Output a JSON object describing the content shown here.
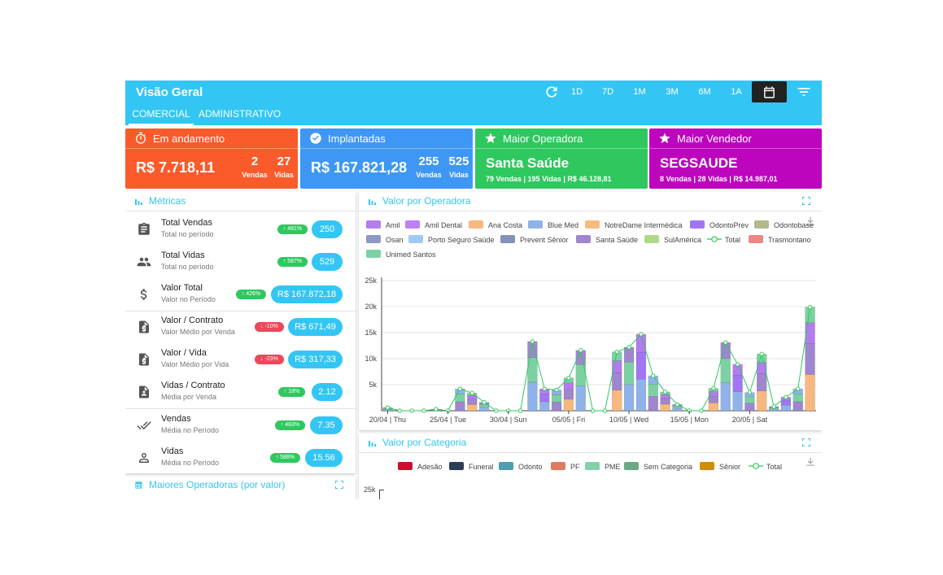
{
  "header": {
    "title": "Visão Geral",
    "tabs": [
      {
        "label": "COMERCIAL",
        "active": true
      },
      {
        "label": "ADMINISTRATIVO",
        "active": false
      }
    ],
    "ranges": [
      "1D",
      "7D",
      "1M",
      "3M",
      "6M",
      "1A"
    ],
    "icons": [
      "refresh-icon",
      "calendar-icon",
      "filter-icon"
    ]
  },
  "kpis": {
    "andamento": {
      "label": "Em andamento",
      "value": "R$ 7.718,11",
      "n1": "2",
      "n1_label": "Vendas",
      "n2": "27",
      "n2_label": "Vidas",
      "color": "#fb5a2b"
    },
    "implantadas": {
      "label": "Implantadas",
      "value": "R$ 167.821,28",
      "n1": "255",
      "n1_label": "Vendas",
      "n2": "525",
      "n2_label": "Vidas",
      "color": "#3e97f4"
    },
    "operadora": {
      "label": "Maior Operadora",
      "name": "Santa Saúde",
      "detail": "79 Vendas | 195 Vidas | R$ 46.128,81",
      "color": "#2fc85f"
    },
    "vendedor": {
      "label": "Maior Vendedor",
      "name": "SEGSAUDE",
      "detail": "8 Vendas | 28 Vidas | R$ 14.987,01",
      "color": "#bd05bd"
    }
  },
  "metrics": {
    "title": "Métricas",
    "rows": [
      {
        "label": "Total Vendas",
        "sub": "Total no período",
        "pct": "↑ 481%",
        "pct_color": "#2fc85f",
        "value": "250",
        "icon": "clipboard-icon"
      },
      {
        "label": "Total Vidas",
        "sub": "Total no período",
        "pct": "↑ 587%",
        "pct_color": "#2fc85f",
        "value": "529",
        "icon": "people-icon"
      },
      {
        "label": "Valor Total",
        "sub": "Valor no Período",
        "pct": "↑ 426%",
        "pct_color": "#2fc85f",
        "value": "R$ 167.872,18",
        "icon": "dollar-icon"
      },
      {
        "label": "Valor / Contrato",
        "sub": "Valor Médio por Venda",
        "pct": "↓ -10%",
        "pct_color": "#f0465a",
        "value": "R$ 671,49",
        "icon": "money-file-icon"
      },
      {
        "label": "Valor / Vida",
        "sub": "Valor Médio por Vida",
        "pct": "↓ -23%",
        "pct_color": "#f0465a",
        "value": "R$ 317,33",
        "icon": "money-file-icon"
      },
      {
        "label": "Vidas / Contrato",
        "sub": "Média por Venda",
        "pct": "↑ 18%",
        "pct_color": "#2fc85f",
        "value": "2.12",
        "icon": "person-file-icon"
      },
      {
        "label": "Vendas",
        "sub": "Média no Período",
        "pct": "↑ 483%",
        "pct_color": "#2fc85f",
        "value": "7.35",
        "icon": "double-check-icon"
      },
      {
        "label": "Vidas",
        "sub": "Média no Período",
        "pct": "↑ 588%",
        "pct_color": "#2fc85f",
        "value": "15.56",
        "icon": "person-icon"
      }
    ]
  },
  "maiores": {
    "title": "Maiores Operadoras (por valor)"
  },
  "chart_data": [
    {
      "type": "bar",
      "title": "Valor por Operadora",
      "stacked": true,
      "ylim": [
        0,
        25000
      ],
      "yticks": [
        "5k",
        "10k",
        "15k",
        "20k",
        "25k"
      ],
      "xtick_labels": [
        "20/04 | Thu",
        "25/04 | Tue",
        "30/04 | Sun",
        "05/05 | Fri",
        "10/05 | Wed",
        "15/05 | Mon",
        "20/05 | Sat"
      ],
      "legend": [
        {
          "name": "Amil",
          "color": "#b57cf0"
        },
        {
          "name": "Amil Dental",
          "color": "#c07ef5"
        },
        {
          "name": "Ana Costa",
          "color": "#f7b87f"
        },
        {
          "name": "Blue Med",
          "color": "#8fb3e8"
        },
        {
          "name": "NotreDame Intermédica",
          "color": "#f7bb7f"
        },
        {
          "name": "OdontoPrev",
          "color": "#a276f2"
        },
        {
          "name": "Odontobase",
          "color": "#b4b98a"
        },
        {
          "name": "Osan",
          "color": "#8f98c4"
        },
        {
          "name": "Porto Seguro Saúde",
          "color": "#9fcaf7"
        },
        {
          "name": "Prevent Sênior",
          "color": "#8591b8"
        },
        {
          "name": "Santa Saúde",
          "color": "#9f86cf"
        },
        {
          "name": "SulAmérica",
          "color": "#b1d985"
        },
        {
          "name": "Total",
          "color": "#2fc85f",
          "line": true
        },
        {
          "name": "Trasmontano",
          "color": "#ee8686"
        },
        {
          "name": "Unimed Santos",
          "color": "#7cd1a2"
        }
      ],
      "totals": [
        600,
        0,
        0,
        0,
        300,
        0,
        4200,
        3400,
        1600,
        0,
        0,
        0,
        13300,
        4200,
        4000,
        6300,
        11600,
        0,
        0,
        11300,
        12200,
        14700,
        6700,
        3600,
        1200,
        0,
        0,
        4300,
        13100,
        8900,
        3500,
        10900,
        800,
        2600,
        4200,
        19900
      ]
    },
    {
      "type": "bar",
      "title": "Valor por Categoria",
      "ytick_top": "25k",
      "legend": [
        {
          "name": "Adesão",
          "color": "#c8102e"
        },
        {
          "name": "Funeral",
          "color": "#2c3e55"
        },
        {
          "name": "Odonto",
          "color": "#4e9fae"
        },
        {
          "name": "PF",
          "color": "#e07a5f"
        },
        {
          "name": "PME",
          "color": "#82d1aa"
        },
        {
          "name": "Sem Categoria",
          "color": "#6aa984"
        },
        {
          "name": "Sênior",
          "color": "#d18c0d"
        },
        {
          "name": "Total",
          "color": "#2fc85f",
          "line": true
        }
      ]
    }
  ]
}
